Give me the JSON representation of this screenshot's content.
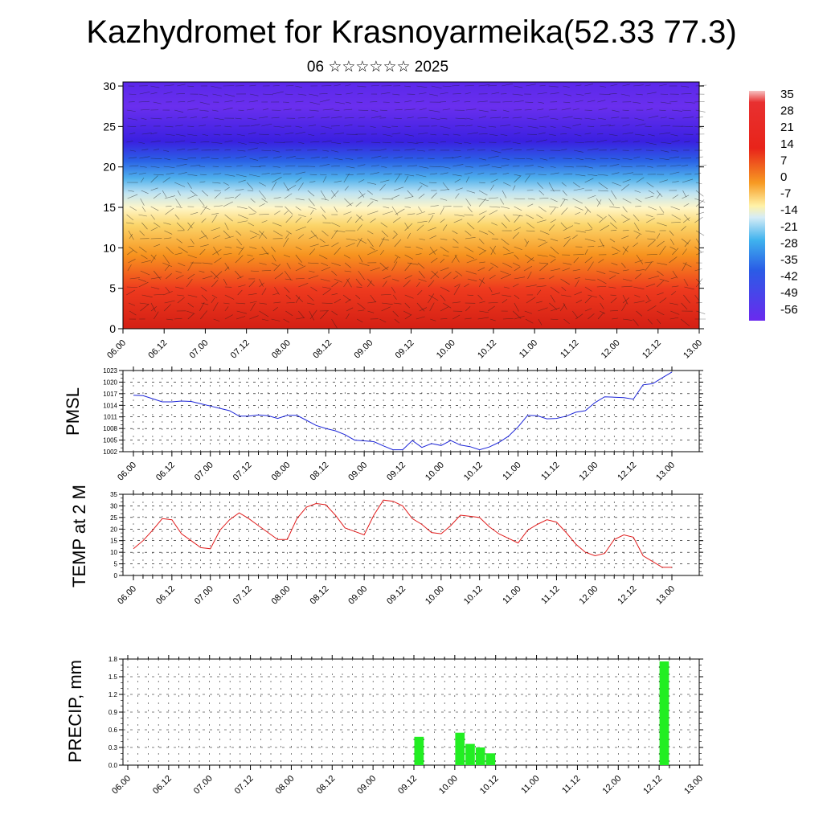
{
  "title": "Kazhydromet for Krasnoyarmeika(52.33 77.3)",
  "subtitle": "06 ☆☆☆☆☆☆ 2025",
  "chart_data": [
    {
      "type": "heatmap",
      "id": "cross-section",
      "x_tick_labels": [
        "06.00",
        "06.12",
        "07.00",
        "07.12",
        "08.00",
        "08.12",
        "09.00",
        "09.12",
        "10.00",
        "10.12",
        "11.00",
        "11.12",
        "12.00",
        "12.12",
        "13.00"
      ],
      "y_tick_labels": [
        "0",
        "5",
        "10",
        "15",
        "20",
        "25",
        "30"
      ],
      "ylim": [
        0,
        30.5
      ],
      "colorbar_labels": [
        "35",
        "28",
        "21",
        "14",
        "7",
        "0",
        "-7",
        "-14",
        "-21",
        "-28",
        "-35",
        "-42",
        "-49",
        "-56"
      ],
      "colors": {
        "warm": "#e8241a",
        "mid": "#fff2a6",
        "cool": "#52b0ee",
        "cold": "#4a1fe8"
      }
    },
    {
      "type": "line",
      "id": "pmsl",
      "ylabel": "PMSL",
      "ylim": [
        1002,
        1023
      ],
      "y_ticks": [
        1002,
        1005,
        1008,
        1011,
        1014,
        1017,
        1020,
        1023
      ],
      "x_tick_labels": [
        "06.00",
        "06.12",
        "07.00",
        "07.12",
        "08.00",
        "08.12",
        "09.00",
        "09.12",
        "10.00",
        "10.12",
        "11.00",
        "11.12",
        "12.00",
        "12.12",
        "13.00"
      ],
      "color": "#1c25d8",
      "values": [
        1016.6,
        1016.5,
        1015.7,
        1014.9,
        1014.9,
        1015.1,
        1015.0,
        1014.4,
        1013.8,
        1013.2,
        1012.6,
        1011.2,
        1011.2,
        1011.5,
        1011.3,
        1010.6,
        1011.4,
        1011.4,
        1010.1,
        1008.8,
        1008.0,
        1007.4,
        1006.4,
        1005.0,
        1004.8,
        1004.6,
        1003.5,
        1002.5,
        1002.5,
        1004.9,
        1003.1,
        1004.1,
        1003.6,
        1004.9,
        1003.7,
        1003.3,
        1002.5,
        1003.2,
        1004.4,
        1006.0,
        1008.4,
        1011.4,
        1011.3,
        1010.5,
        1010.6,
        1011.2,
        1012.2,
        1012.6,
        1014.7,
        1016.2,
        1016.1,
        1016.0,
        1015.6,
        1019.3,
        1019.6,
        1021.1,
        1022.6
      ]
    },
    {
      "type": "line",
      "id": "temp",
      "ylabel": "TEMP at 2 M",
      "ylim": [
        0,
        35
      ],
      "y_ticks": [
        0,
        5,
        10,
        15,
        20,
        25,
        30,
        35
      ],
      "x_tick_labels": [
        "06.00",
        "06.12",
        "07.00",
        "07.12",
        "08.00",
        "08.12",
        "09.00",
        "09.12",
        "10.00",
        "10.12",
        "11.00",
        "11.12",
        "12.00",
        "12.12",
        "13.00"
      ],
      "color": "#e01b1b",
      "values": [
        11.5,
        15.0,
        19.5,
        24.5,
        24.0,
        18.0,
        15.0,
        12.0,
        11.5,
        19.5,
        24.0,
        27.0,
        24.5,
        21.5,
        18.5,
        15.5,
        15.5,
        24.5,
        29.5,
        31.0,
        30.5,
        26.0,
        20.5,
        19.0,
        17.5,
        26.0,
        32.5,
        32.0,
        30.0,
        24.5,
        22.0,
        18.5,
        18.0,
        21.5,
        26.0,
        25.5,
        25.0,
        21.0,
        18.0,
        16.0,
        14.0,
        19.5,
        22.0,
        24.0,
        23.0,
        18.5,
        13.5,
        10.0,
        8.5,
        9.5,
        15.5,
        17.5,
        16.5,
        8.5,
        6.0,
        3.5,
        3.5
      ]
    },
    {
      "type": "bar",
      "id": "precip",
      "ylabel": "PRECIP, mm",
      "ylim": [
        0,
        1.8
      ],
      "y_tick_labels": [
        "0.0",
        "0.3",
        "0.6",
        "0.9",
        "1.2",
        "1.5",
        "1.8"
      ],
      "x_tick_labels": [
        "06.00",
        "06.12",
        "07.00",
        "07.12",
        "08.00",
        "08.12",
        "09.00",
        "09.12",
        "10.00",
        "10.12",
        "11.00",
        "11.12",
        "12.00",
        "12.12",
        "13.00"
      ],
      "color": "#22ee22",
      "bars": [
        {
          "x": 28.5,
          "value": 0.48
        },
        {
          "x": 32.5,
          "value": 0.55
        },
        {
          "x": 33.5,
          "value": 0.36
        },
        {
          "x": 34.5,
          "value": 0.3
        },
        {
          "x": 35.5,
          "value": 0.2
        },
        {
          "x": 52.5,
          "value": 1.76
        }
      ]
    }
  ]
}
